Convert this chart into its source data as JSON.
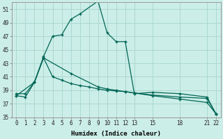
{
  "xlabel": "Humidex (Indice chaleur)",
  "background_color": "#cceee8",
  "grid_color": "#aad8d0",
  "line_color": "#006655",
  "xlim": [
    -0.5,
    22.5
  ],
  "ylim": [
    35,
    52
  ],
  "yticks": [
    35,
    37,
    39,
    41,
    43,
    45,
    47,
    49,
    51
  ],
  "xticks": [
    0,
    1,
    2,
    3,
    4,
    5,
    6,
    7,
    8,
    9,
    10,
    11,
    12,
    13,
    15,
    18,
    21,
    22
  ],
  "series1_x": [
    0,
    1,
    2,
    3,
    4,
    5,
    6,
    7,
    9,
    10,
    11,
    12,
    13,
    15,
    18,
    21,
    22
  ],
  "series1_y": [
    38.2,
    38.0,
    40.2,
    44.0,
    47.0,
    47.2,
    49.5,
    50.3,
    52.2,
    47.5,
    46.2,
    46.2,
    38.5,
    38.7,
    38.5,
    38.0,
    35.5
  ],
  "series2_x": [
    0,
    2,
    3,
    6,
    9,
    10,
    11,
    12,
    13,
    15,
    18,
    21,
    22
  ],
  "series2_y": [
    38.2,
    40.2,
    43.8,
    41.5,
    39.5,
    39.2,
    39.0,
    38.8,
    38.6,
    38.2,
    37.7,
    37.2,
    35.5
  ],
  "series3_x": [
    0,
    1,
    2,
    3,
    4,
    5,
    6,
    7,
    8,
    9,
    10,
    11,
    12,
    13,
    15,
    18,
    21,
    22
  ],
  "series3_y": [
    38.5,
    38.5,
    40.2,
    43.8,
    41.0,
    40.5,
    40.0,
    39.7,
    39.5,
    39.2,
    39.0,
    38.9,
    38.8,
    38.6,
    38.3,
    38.0,
    37.8,
    35.5
  ]
}
